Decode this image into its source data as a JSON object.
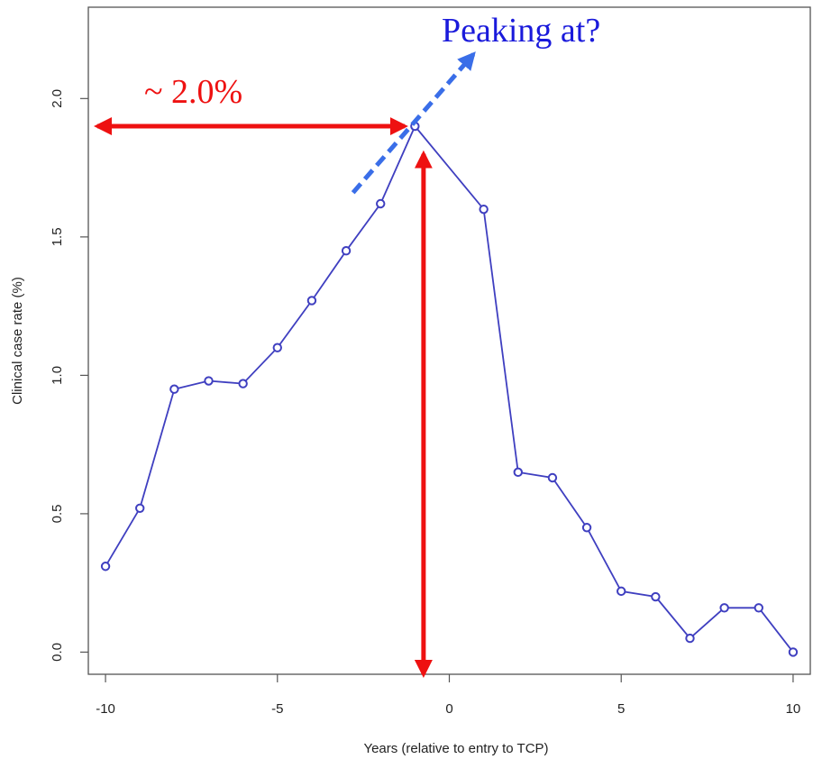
{
  "chart_data": {
    "type": "line",
    "title": "",
    "xlabel": "Years (relative to entry to TCP)",
    "ylabel": "Clinical case rate (%)",
    "xlim": [
      -10.5,
      10.5
    ],
    "ylim": [
      -0.08,
      2.33
    ],
    "grid": false,
    "xticks": [
      -10,
      -5,
      0,
      5,
      10
    ],
    "xtick_labels": [
      "-10",
      "-5",
      "0",
      "5",
      "10"
    ],
    "yticks": [
      0.0,
      0.5,
      1.0,
      1.5,
      2.0
    ],
    "ytick_labels": [
      "0.0",
      "0.5",
      "1.0",
      "1.5",
      "2.0"
    ],
    "series": [
      {
        "color": "#3f3fc0",
        "marker": "open-circle",
        "x": [
          -10,
          -9,
          -8,
          -7,
          -6,
          -5,
          -4,
          -3,
          -2,
          -1,
          1,
          2,
          3,
          4,
          5,
          6,
          7,
          8,
          9,
          10
        ],
        "y": [
          0.31,
          0.52,
          0.95,
          0.98,
          0.97,
          1.1,
          1.27,
          1.45,
          1.62,
          1.9,
          1.6,
          0.65,
          0.63,
          0.45,
          0.22,
          0.2,
          0.05,
          0.16,
          0.16,
          0.0
        ]
      }
    ],
    "annotations": {
      "approx_label": "~ 2.0%",
      "peak_question": "Peaking at?",
      "red_color": "#ee1111",
      "blue_text_color": "#1a1adb",
      "dashed_arrow_color": "#3a6ee8",
      "horizontal_arrow": {
        "x_from": -10.5,
        "x_to": -1.3,
        "y": 1.9
      },
      "vertical_arrow": {
        "x": -0.75,
        "y_from": -0.08,
        "y_to": 1.8
      },
      "dashed_arrow": {
        "x_from": -2.8,
        "y_from": 1.66,
        "x_to": 0.7,
        "y_to": 2.16
      }
    }
  }
}
